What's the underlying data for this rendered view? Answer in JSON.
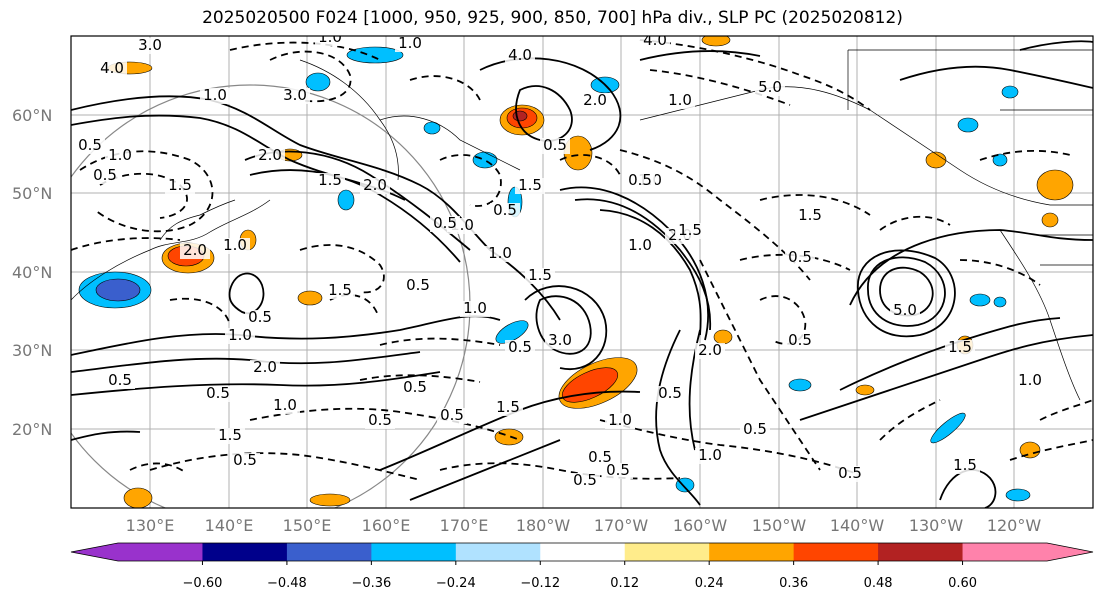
{
  "title": "2025020500 F024 [1000, 950, 925, 900, 850, 700] hPa div., SLP PC (2025020812)",
  "lat_labels": [
    "60°N",
    "50°N",
    "40°N",
    "30°N",
    "20°N"
  ],
  "lon_labels": [
    "130°E",
    "140°E",
    "150°E",
    "160°E",
    "170°E",
    "180°W",
    "170°W",
    "160°W",
    "150°W",
    "140°W",
    "130°W",
    "120°W"
  ],
  "colorbar": {
    "colors": [
      "#9932cc",
      "#00008b",
      "#3a5fcd",
      "#00bfff",
      "#b0e2ff",
      "#ffffff",
      "#ffec8b",
      "#ffa500",
      "#ff4500",
      "#b22222",
      "#ff82ab"
    ],
    "tick_labels": [
      "−0.60",
      "−0.48",
      "−0.36",
      "−0.24",
      "−0.12",
      "0.12",
      "0.24",
      "0.36",
      "0.48",
      "0.60"
    ]
  },
  "contour_labels": [
    "3.0",
    "4.0",
    "1.0",
    "4.0",
    "1.0",
    "1.0",
    "3.0",
    "4.0",
    "5.0",
    "2.0",
    "0.5",
    "1.0",
    "2.0",
    "1.0",
    "0.5",
    "2.0",
    "1.5",
    "1.0",
    "0.5",
    "2.0",
    "1.5",
    "0.5",
    "2.0",
    "1.0",
    "0.5",
    "1.5",
    "0.5",
    "1.0",
    "0.5",
    "1.5",
    "3.0",
    "1.0",
    "0.5",
    "1.0",
    "1.5",
    "0.5",
    "5.0",
    "1.5",
    "0.5",
    "1.0",
    "1.5",
    "2.0",
    "1.0",
    "2.0",
    "0.5",
    "0.5",
    "1.0",
    "1.5",
    "0.5",
    "0.5",
    "0.5",
    "1.5",
    "0.5",
    "0.5",
    "0.5",
    "0.5",
    "1.0",
    "0.5",
    "1.0",
    "0.5",
    "0.5",
    "1.5",
    "0.5",
    "1.0",
    "1.5"
  ]
}
